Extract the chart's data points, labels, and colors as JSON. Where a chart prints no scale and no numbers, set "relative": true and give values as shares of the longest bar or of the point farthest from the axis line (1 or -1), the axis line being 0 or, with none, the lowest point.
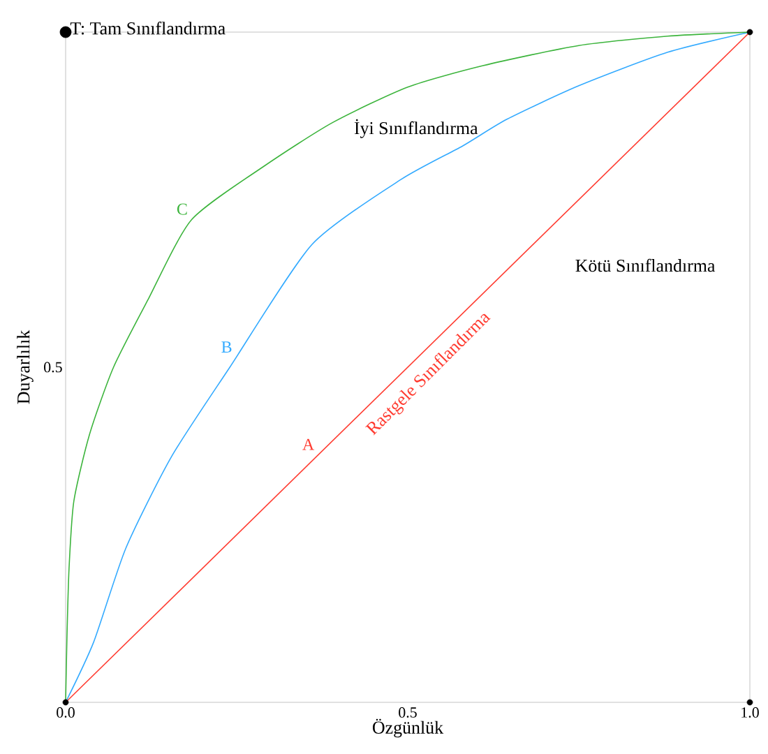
{
  "chart_data": {
    "type": "line",
    "xlabel": "Özgünlük",
    "ylabel": "Duyarlılık",
    "xlim": [
      0,
      1
    ],
    "relative": true,
    "xticks": [
      {
        "value": 0,
        "label": "0.0"
      },
      0.5,
      {
        "value": 1,
        "label": "1.0"
      }
    ],
    "grid": false,
    "series": [
      {
        "name": "A",
        "color": "#ff3b30",
        "x": [
          0,
          1
        ],
        "values": [
          0,
          1
        ]
      },
      {
        "name": "B",
        "color": "#33aaff",
        "x": [
          0,
          0.041,
          0.088,
          0.155,
          0.24,
          0.36,
          0.49,
          0.58,
          0.645,
          0.75,
          0.88,
          1
        ],
        "values": [
          0,
          0.09,
          0.23,
          0.367,
          0.5,
          0.683,
          0.78,
          0.83,
          0.87,
          0.92,
          0.97,
          1
        ]
      },
      {
        "name": "C",
        "color": "#3cb43c",
        "x": [
          0,
          0.002,
          0.005,
          0.012,
          0.035,
          0.07,
          0.12,
          0.184,
          0.29,
          0.39,
          0.5,
          0.61,
          0.75,
          0.88,
          1
        ],
        "values": [
          0,
          0.1,
          0.2,
          0.3,
          0.4,
          0.5,
          0.6,
          0.72,
          0.8,
          0.865,
          0.918,
          0.95,
          0.98,
          0.994,
          1
        ]
      },
      {
        "type": "scatter",
        "color": "#000000",
        "marker": "circle",
        "x": [
          0,
          1,
          1
        ],
        "values": [
          0,
          0,
          1
        ]
      },
      {
        "type": "scatter",
        "color": "#000000",
        "marker": "circle",
        "x": [
          0
        ],
        "values": [
          1
        ]
      }
    ],
    "annotations": [
      {
        "text": "T: Tam Sınıflandırma",
        "x": 0,
        "y": 1
      },
      "İyi Sınıflandırma",
      "Kötü Sınıflandırma",
      "Rastgele Sınıflandırma",
      "0.5"
    ]
  }
}
